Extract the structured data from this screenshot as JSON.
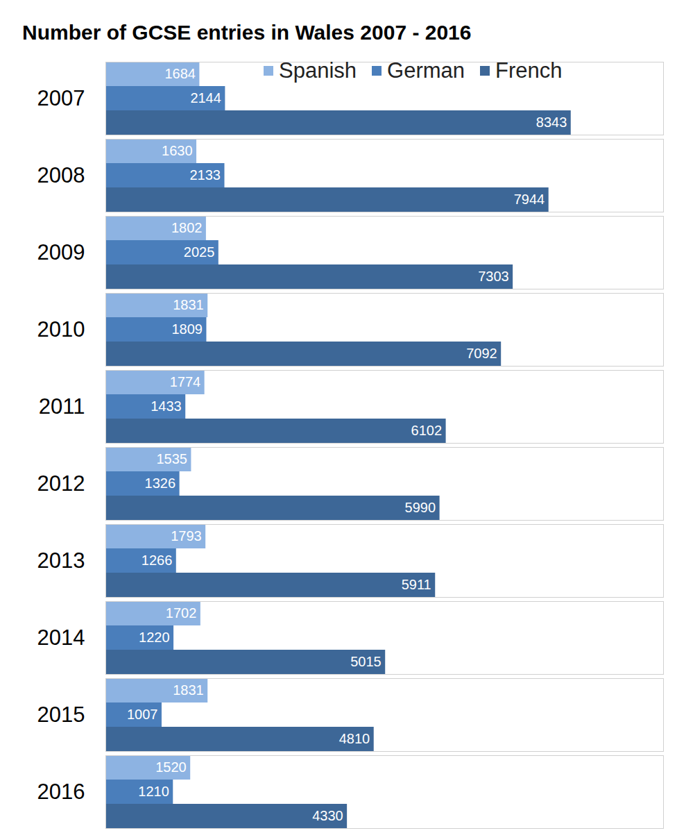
{
  "chart_data": {
    "type": "bar",
    "title": "Number of GCSE entries in Wales 2007 - 2016",
    "orientation": "horizontal",
    "categories": [
      "2007",
      "2008",
      "2009",
      "2010",
      "2011",
      "2012",
      "2013",
      "2014",
      "2015",
      "2016"
    ],
    "series": [
      {
        "name": "Spanish",
        "color": "#8db3e2",
        "values": [
          1684,
          1630,
          1802,
          1831,
          1774,
          1535,
          1793,
          1702,
          1831,
          1520
        ]
      },
      {
        "name": "German",
        "color": "#4a7ebb",
        "values": [
          2144,
          2133,
          2025,
          1809,
          1433,
          1326,
          1266,
          1220,
          1007,
          1210
        ]
      },
      {
        "name": "French",
        "color": "#3d6797",
        "values": [
          8343,
          7944,
          7303,
          7092,
          6102,
          5990,
          5911,
          5015,
          4810,
          4330
        ]
      }
    ],
    "xlim": [
      0,
      10000
    ],
    "xticks": [],
    "data_labels": true,
    "tick_labels": "y",
    "legend": "top-right",
    "grid": false
  }
}
